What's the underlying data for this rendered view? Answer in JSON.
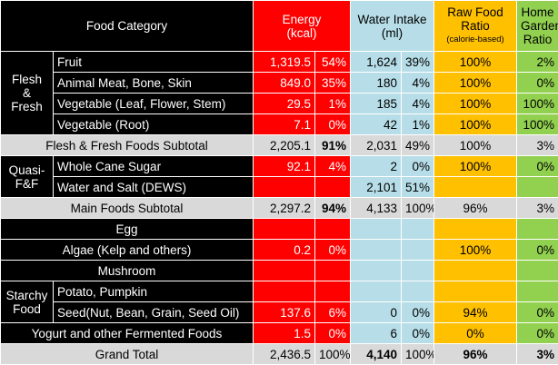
{
  "header": {
    "category": "Food Category",
    "energy": [
      "Energy",
      "(kcal)"
    ],
    "water": [
      "Water Intake",
      "(ml)"
    ],
    "raw": [
      "Raw Food",
      "Ratio",
      "(calorie-based)"
    ],
    "garden": [
      "Home",
      "Garden",
      "Ratio"
    ]
  },
  "groups": {
    "flesh": [
      "Flesh",
      "&",
      "Fresh"
    ],
    "quasi": [
      "Quasi-",
      "F&F"
    ],
    "starchy": [
      "Starchy",
      "Food"
    ]
  },
  "rows": [
    [
      "Fruit",
      "1,319.5",
      "54%",
      "1,624",
      "39%",
      "100%",
      "2%"
    ],
    [
      "Animal Meat, Bone, Skin",
      "849.0",
      "35%",
      "180",
      "4%",
      "100%",
      "0%"
    ],
    [
      "Vegetable (Leaf, Flower, Stem)",
      "29.5",
      "1%",
      "185",
      "4%",
      "100%",
      "100%"
    ],
    [
      "Vegetable (Root)",
      "7.1",
      "0%",
      "42",
      "1%",
      "100%",
      "100%"
    ],
    [
      "Flesh & Fresh Foods Subtotal",
      "2,205.1",
      "91%",
      "2,031",
      "49%",
      "100%",
      "3%"
    ],
    [
      "Whole Cane Sugar",
      "92.1",
      "4%",
      "2",
      "0%",
      "100%",
      "0%"
    ],
    [
      "Water and Salt (DEWS)",
      null,
      null,
      "2,101",
      "51%",
      null,
      null
    ],
    [
      "Main Foods Subtotal",
      "2,297.2",
      "94%",
      "4,133",
      "100%",
      "96%",
      "3%"
    ],
    [
      "Egg",
      null,
      null,
      null,
      null,
      null,
      null
    ],
    [
      "Algae (Kelp and others)",
      "0.2",
      "0%",
      null,
      null,
      "100%",
      "0%"
    ],
    [
      "Mushroom",
      null,
      null,
      null,
      null,
      null,
      null
    ],
    [
      "Potato, Pumpkin",
      null,
      null,
      null,
      null,
      null,
      null
    ],
    [
      "Seed(Nut, Bean, Grain, Seed Oil)",
      "137.6",
      "6%",
      "0",
      "0%",
      "94%",
      "0%"
    ],
    [
      "Yogurt and other Fermented Foods",
      "1.5",
      "0%",
      "6",
      "0%",
      "0%",
      "0%"
    ],
    [
      "Grand Total",
      "2,436.5",
      "100%",
      "4,140",
      "100%",
      "96%",
      "3%"
    ]
  ]
}
